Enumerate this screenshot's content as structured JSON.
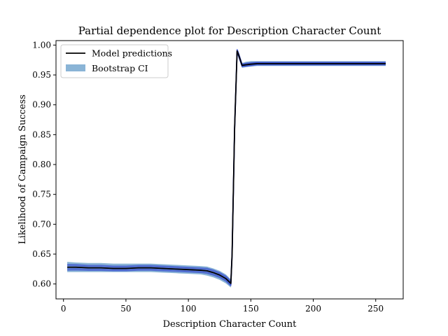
{
  "chart_data": {
    "type": "line",
    "title": "Partial dependence plot for Description Character Count",
    "xlabel": "Description Character Count",
    "ylabel": "Likelihood of Campaign Success",
    "xlim": [
      -6,
      272
    ],
    "ylim": [
      0.575,
      1.0075
    ],
    "xticks": [
      0,
      50,
      100,
      150,
      200,
      250
    ],
    "xtick_labels": [
      "0",
      "50",
      "100",
      "150",
      "200",
      "250"
    ],
    "yticks": [
      0.6,
      0.65,
      0.7,
      0.75,
      0.8,
      0.85,
      0.9,
      0.95,
      1.0
    ],
    "ytick_labels": [
      "0.60",
      "0.65",
      "0.70",
      "0.75",
      "0.80",
      "0.85",
      "0.90",
      "0.95",
      "1.00"
    ],
    "grid": false,
    "legend": {
      "placement": "top-left",
      "entries": [
        {
          "label": "Model predictions",
          "kind": "line",
          "color": "#000000"
        },
        {
          "label": "Bootstrap CI",
          "kind": "patch",
          "color": "#8ab4d6"
        }
      ]
    },
    "series": [
      {
        "name": "Model predictions",
        "x": [
          3,
          10,
          20,
          30,
          40,
          50,
          60,
          70,
          80,
          90,
          100,
          110,
          115,
          120,
          125,
          130,
          134,
          135,
          137,
          139,
          140,
          143,
          146,
          150,
          155,
          200,
          258
        ],
        "y": [
          0.628,
          0.628,
          0.627,
          0.627,
          0.626,
          0.626,
          0.627,
          0.627,
          0.626,
          0.625,
          0.624,
          0.623,
          0.622,
          0.619,
          0.615,
          0.609,
          0.601,
          0.65,
          0.86,
          0.99,
          0.985,
          0.966,
          0.967,
          0.968,
          0.969,
          0.969,
          0.969
        ]
      }
    ],
    "bootstrap_ci": {
      "name": "Bootstrap CI",
      "x": [
        3,
        10,
        20,
        30,
        40,
        50,
        60,
        70,
        80,
        90,
        100,
        110,
        115,
        120,
        125,
        130,
        134,
        135,
        137,
        139,
        140,
        143,
        146,
        150,
        155,
        200,
        258
      ],
      "lower": [
        0.62,
        0.62,
        0.62,
        0.62,
        0.62,
        0.62,
        0.62,
        0.62,
        0.619,
        0.618,
        0.617,
        0.616,
        0.614,
        0.611,
        0.607,
        0.601,
        0.594,
        0.645,
        0.855,
        0.985,
        0.98,
        0.962,
        0.963,
        0.964,
        0.965,
        0.965,
        0.965
      ],
      "upper": [
        0.637,
        0.636,
        0.635,
        0.635,
        0.634,
        0.634,
        0.634,
        0.634,
        0.633,
        0.632,
        0.631,
        0.63,
        0.629,
        0.626,
        0.622,
        0.616,
        0.608,
        0.655,
        0.865,
        0.994,
        0.99,
        0.97,
        0.972,
        0.973,
        0.973,
        0.973,
        0.973
      ]
    },
    "colors": {
      "ci_fill": "#8ab4d6",
      "sample_lines": "#2233cc",
      "prediction": "#000000"
    }
  }
}
